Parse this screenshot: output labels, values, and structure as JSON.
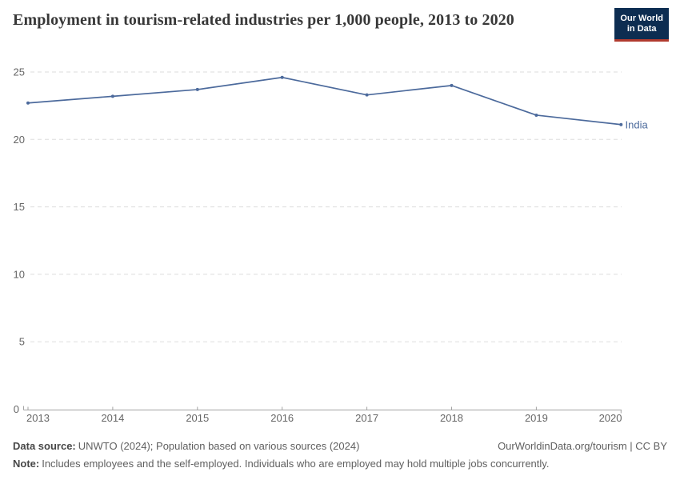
{
  "header": {
    "title": "Employment in tourism-related industries per 1,000 people, 2013 to 2020",
    "logo": {
      "line1": "Our World",
      "line2": "in Data",
      "bg_color": "#0d2d51",
      "accent_color": "#b13a2e"
    }
  },
  "chart_data": {
    "type": "line",
    "title": "Employment in tourism-related industries per 1,000 people, 2013 to 2020",
    "x": [
      2013,
      2014,
      2015,
      2016,
      2017,
      2018,
      2019,
      2020
    ],
    "series": [
      {
        "name": "India",
        "values": [
          22.7,
          23.2,
          23.7,
          24.6,
          23.3,
          24.0,
          21.8,
          21.1
        ],
        "color": "#4C6A9C"
      }
    ],
    "xlabel": "",
    "ylabel": "",
    "ylim": [
      0,
      25
    ],
    "yticks": [
      0,
      5,
      10,
      15,
      20,
      25
    ],
    "grid": "horizontal-dashed",
    "legend_position": "end-of-line-label",
    "end_label": "India"
  },
  "footer": {
    "data_source_label": "Data source:",
    "data_source": "UNWTO (2024); Population based on various sources (2024)",
    "attribution": "OurWorldinData.org/tourism | CC BY",
    "note_label": "Note:",
    "note": "Includes employees and the self-employed. Individuals who are employed may hold multiple jobs concurrently."
  },
  "colors": {
    "line": "#4C6A9C",
    "grid": "#dddddd",
    "axis": "#a3a3a3",
    "tick_label": "#666666",
    "title_text": "#383838",
    "footer_text": "#606060"
  }
}
